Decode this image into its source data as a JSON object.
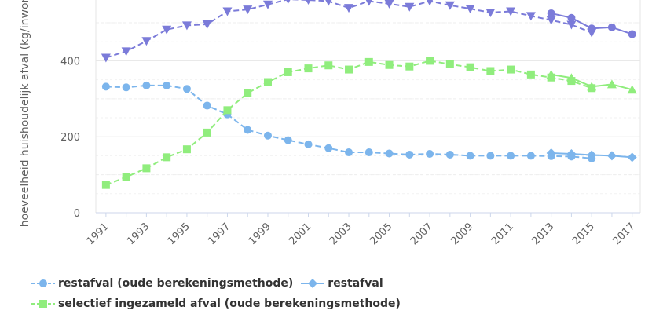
{
  "chart_data": {
    "type": "line",
    "title": "",
    "ylabel": "hoeveelheid huishoudelijk afval (kg/inwoner)",
    "ylim": [
      0,
      560
    ],
    "yticks": [
      0,
      200,
      400
    ],
    "xticks": [
      "1991",
      "1993",
      "1995",
      "1997",
      "1999",
      "2001",
      "2003",
      "2005",
      "2007",
      "2009",
      "2011",
      "2013",
      "2015",
      "2017"
    ],
    "grid": true,
    "legend_position": "bottom-left",
    "series": [
      {
        "key": "totaal_oud",
        "color": "#7b7bd9",
        "marker": "triangle-down",
        "dashed": true,
        "x": [
          1991,
          1992,
          1993,
          1994,
          1995,
          1996,
          1997,
          1998,
          1999,
          2000,
          2001,
          2002,
          2003,
          2004,
          2005,
          2006,
          2007,
          2008,
          2009,
          2010,
          2011,
          2012,
          2013,
          2014,
          2015
        ],
        "values": [
          408,
          425,
          452,
          482,
          493,
          496,
          530,
          535,
          548,
          562,
          560,
          557,
          539,
          557,
          550,
          542,
          557,
          546,
          537,
          527,
          530,
          518,
          507,
          495,
          474
        ]
      },
      {
        "key": "totaal",
        "color": "#7b7bd9",
        "marker": "circle",
        "dashed": false,
        "x": [
          2013,
          2014,
          2015,
          2016,
          2017
        ],
        "values": [
          525,
          513,
          485,
          488,
          470
        ]
      },
      {
        "name": "restafval (oude berekeningsmethode)",
        "key": "rest_oud",
        "color": "#7cb5ec",
        "marker": "circle",
        "dashed": true,
        "x": [
          1991,
          1992,
          1993,
          1994,
          1995,
          1996,
          1997,
          1998,
          1999,
          2000,
          2001,
          2002,
          2003,
          2004,
          2005,
          2006,
          2007,
          2008,
          2009,
          2010,
          2011,
          2012,
          2013,
          2014,
          2015
        ],
        "values": [
          332,
          330,
          335,
          335,
          326,
          282,
          259,
          218,
          203,
          191,
          180,
          170,
          159,
          159,
          156,
          153,
          155,
          153,
          150,
          150,
          150,
          150,
          149,
          148,
          143
        ]
      },
      {
        "name": "restafval",
        "key": "rest",
        "color": "#7cb5ec",
        "marker": "diamond",
        "dashed": false,
        "x": [
          2013,
          2014,
          2015,
          2016,
          2017
        ],
        "values": [
          157,
          155,
          152,
          150,
          146
        ]
      },
      {
        "name": "selectief ingezameld afval (oude berekeningsmethode)",
        "key": "selectief_oud",
        "color": "#90ed7d",
        "marker": "square",
        "dashed": true,
        "x": [
          1991,
          1992,
          1993,
          1994,
          1995,
          1996,
          1997,
          1998,
          1999,
          2000,
          2001,
          2002,
          2003,
          2004,
          2005,
          2006,
          2007,
          2008,
          2009,
          2010,
          2011,
          2012,
          2013,
          2014,
          2015
        ],
        "values": [
          73,
          94,
          117,
          146,
          167,
          211,
          270,
          315,
          344,
          370,
          380,
          388,
          377,
          397,
          389,
          385,
          400,
          391,
          383,
          373,
          377,
          364,
          356,
          347,
          328
        ]
      },
      {
        "key": "selectief",
        "color": "#90ed7d",
        "marker": "triangle",
        "dashed": false,
        "x": [
          2013,
          2014,
          2015,
          2016,
          2017
        ],
        "values": [
          364,
          355,
          332,
          338,
          324
        ]
      }
    ]
  },
  "legend": {
    "items": [
      {
        "label": "restafval (oude berekeningsmethode)"
      },
      {
        "label": "restafval"
      },
      {
        "label": "selectief ingezameld afval (oude berekeningsmethode)"
      }
    ]
  }
}
